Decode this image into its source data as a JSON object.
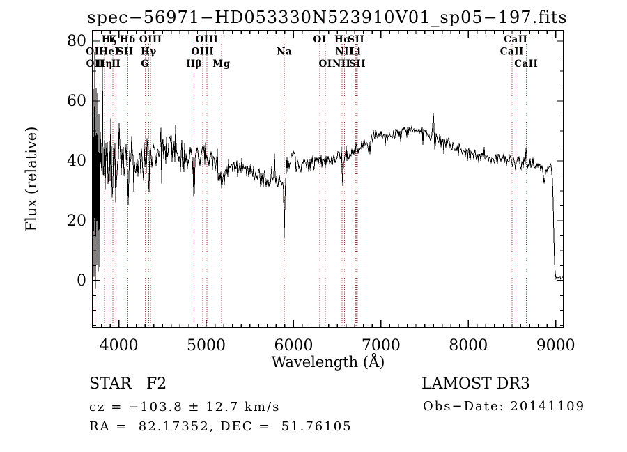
{
  "header": {
    "title": "spec−56971−HD053330N523910V01_sp05−197.fits"
  },
  "footer": {
    "class_line": "STAR   F2",
    "survey": "LAMOST DR3",
    "cz_line": "cz = −103.8 ± 12.7 km/s",
    "obs_date_line": "Obs−Date: 20141109",
    "radec_line": "RA =  82.17352, DEC =  51.76105"
  },
  "chart_data": {
    "type": "line",
    "title": "spec−56971−HD053330N523910V01_sp05−197.fits",
    "xlabel": "Wavelength (Å)",
    "ylabel": "Flux (relative)",
    "xlim": [
      3700,
      9090
    ],
    "ylim": [
      -15.6,
      83.5
    ],
    "x_ticks": [
      4000,
      5000,
      6000,
      7000,
      8000,
      9000
    ],
    "x_minor_step": 100,
    "y_ticks": [
      0,
      20,
      40,
      60,
      80
    ],
    "y_minor_step": 5,
    "grid": false,
    "legend": "none",
    "line_color": "#000000",
    "marker_line_color": "#9a3332",
    "noise_seed": 77,
    "continuum_points": [
      [
        3700,
        35
      ],
      [
        3722,
        40
      ],
      [
        3780,
        41
      ],
      [
        3850,
        40
      ],
      [
        3950,
        39
      ],
      [
        4050,
        38
      ],
      [
        4150,
        40
      ],
      [
        4250,
        40
      ],
      [
        4350,
        41
      ],
      [
        4450,
        43
      ],
      [
        4550,
        44
      ],
      [
        4650,
        42
      ],
      [
        4750,
        41
      ],
      [
        4850,
        41
      ],
      [
        4950,
        42
      ],
      [
        5060,
        41
      ],
      [
        5175,
        36
      ],
      [
        5300,
        38
      ],
      [
        5450,
        37
      ],
      [
        5600,
        35
      ],
      [
        5760,
        33
      ],
      [
        5880,
        32
      ],
      [
        5990,
        43
      ],
      [
        6060,
        38
      ],
      [
        6160,
        38.5
      ],
      [
        6280,
        39.5
      ],
      [
        6420,
        40.5
      ],
      [
        6560,
        41
      ],
      [
        6700,
        43.5
      ],
      [
        6810,
        46
      ],
      [
        6900,
        48
      ],
      [
        7010,
        48.5
      ],
      [
        7160,
        49.5
      ],
      [
        7360,
        50
      ],
      [
        7520,
        49
      ],
      [
        7660,
        47
      ],
      [
        7810,
        44.5
      ],
      [
        7960,
        43
      ],
      [
        8110,
        41.5
      ],
      [
        8310,
        41
      ],
      [
        8460,
        40.5
      ],
      [
        8560,
        40
      ],
      [
        8760,
        38.5
      ],
      [
        8950,
        38
      ],
      [
        8968,
        30
      ],
      [
        8978,
        15
      ],
      [
        8988,
        4
      ],
      [
        9002,
        1
      ],
      [
        9090,
        0.8
      ]
    ],
    "noise_halfamp_points": [
      [
        3700,
        37
      ],
      [
        3740,
        36
      ],
      [
        3780,
        30
      ],
      [
        3830,
        26
      ],
      [
        3880,
        23
      ],
      [
        3930,
        20
      ],
      [
        3980,
        17
      ],
      [
        4030,
        15
      ],
      [
        4130,
        12
      ],
      [
        4230,
        10.5
      ],
      [
        4330,
        9.5
      ],
      [
        4430,
        8.5
      ],
      [
        4530,
        7.5
      ],
      [
        4630,
        7
      ],
      [
        4780,
        6
      ],
      [
        4930,
        5.5
      ],
      [
        5110,
        5
      ],
      [
        5310,
        4.5
      ],
      [
        5510,
        4.2
      ],
      [
        5710,
        3.8
      ],
      [
        5910,
        3.5
      ],
      [
        6110,
        3.3
      ],
      [
        6310,
        3.2
      ],
      [
        6560,
        3
      ],
      [
        6810,
        2.8
      ],
      [
        7010,
        2.6
      ],
      [
        7410,
        2.6
      ],
      [
        7810,
        2.6
      ],
      [
        8210,
        2.6
      ],
      [
        8610,
        2.7
      ],
      [
        8860,
        2.6
      ],
      [
        8950,
        2
      ],
      [
        8978,
        1
      ],
      [
        9002,
        0.4
      ],
      [
        9090,
        0.4
      ]
    ],
    "features": [
      [
        3933,
        -12,
        12
      ],
      [
        3968,
        -10,
        12
      ],
      [
        4102,
        -8,
        14
      ],
      [
        4340,
        -9,
        14
      ],
      [
        4861,
        -10,
        16
      ],
      [
        5175,
        -5,
        40
      ],
      [
        5780,
        11,
        9
      ],
      [
        5894,
        -19,
        13
      ],
      [
        6563,
        -8,
        16
      ],
      [
        6875,
        -3,
        18
      ],
      [
        7597,
        7,
        10
      ],
      [
        7618,
        -3,
        18
      ],
      [
        8542,
        -3,
        12
      ],
      [
        8605,
        -3,
        15
      ],
      [
        8662,
        4.5,
        12
      ],
      [
        8870,
        -4,
        30
      ]
    ],
    "line_markers": [
      {
        "label": "Hζ",
        "wavelength": 3889,
        "row": 0
      },
      {
        "label": "K",
        "wavelength": 3933,
        "row": 0
      },
      {
        "label": "Hδ",
        "wavelength": 4102,
        "row": 0
      },
      {
        "label": "OIII",
        "wavelength": 4363,
        "row": 0
      },
      {
        "label": "OIII",
        "wavelength": 5007,
        "row": 0
      },
      {
        "label": "OI",
        "wavelength": 6300,
        "row": 0
      },
      {
        "label": "Hα",
        "wavelength": 6563,
        "row": 0
      },
      {
        "label": "SII",
        "wavelength": 6716,
        "row": 0
      },
      {
        "label": "CaII",
        "wavelength": 8542,
        "row": 0
      },
      {
        "label": "OII",
        "wavelength": 3726,
        "row": 1
      },
      {
        "label": "HeI",
        "wavelength": 3889,
        "row": 1
      },
      {
        "label": "SII",
        "wavelength": 4072,
        "row": 1
      },
      {
        "label": "Hγ",
        "wavelength": 4340,
        "row": 1
      },
      {
        "label": "OIII",
        "wavelength": 4959,
        "row": 1
      },
      {
        "label": "Na",
        "wavelength": 5894,
        "row": 1
      },
      {
        "label": "NII",
        "wavelength": 6583,
        "row": 1
      },
      {
        "label": "Li",
        "wavelength": 6708,
        "row": 1
      },
      {
        "label": "CaII",
        "wavelength": 8498,
        "row": 1
      },
      {
        "label": "OII",
        "wavelength": 3729,
        "row": 2
      },
      {
        "label": "Hη",
        "wavelength": 3835,
        "row": 2
      },
      {
        "label": "H",
        "wavelength": 3968,
        "row": 2
      },
      {
        "label": "G",
        "wavelength": 4300,
        "row": 2
      },
      {
        "label": "Hβ",
        "wavelength": 4861,
        "row": 2
      },
      {
        "label": "Mg",
        "wavelength": 5175,
        "row": 2
      },
      {
        "label": "OI",
        "wavelength": 6363,
        "row": 2
      },
      {
        "label": "NII",
        "wavelength": 6548,
        "row": 2
      },
      {
        "label": "SII",
        "wavelength": 6731,
        "row": 2
      },
      {
        "label": "CaII",
        "wavelength": 8662,
        "row": 2
      }
    ]
  }
}
